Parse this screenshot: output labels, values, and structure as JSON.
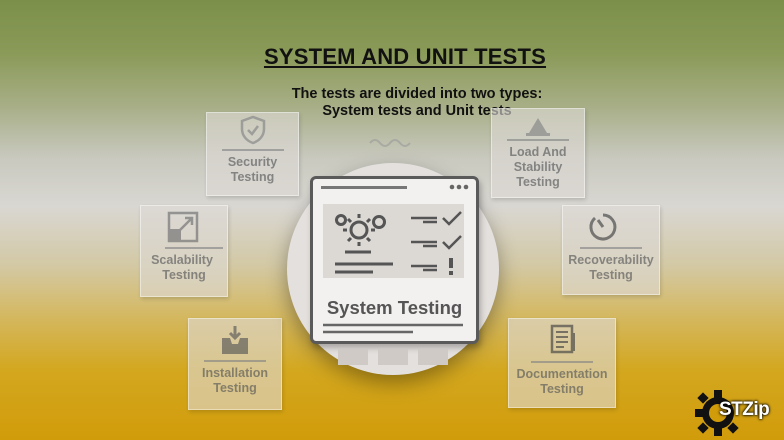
{
  "title": "SYSTEM AND UNIT TESTS",
  "subtitle": {
    "line1": "The tests are divided into two types:",
    "line2": "System tests and Unit tests"
  },
  "center": {
    "label": "System Testing"
  },
  "cards": {
    "security": {
      "line1": "Security",
      "line2": "Testing",
      "icon": "shield-check-icon"
    },
    "load": {
      "line1": "Load And",
      "line2": "Stability",
      "line3": "Testing",
      "icon": "scale-icon"
    },
    "scalability": {
      "line1": "Scalability",
      "line2": "Testing",
      "icon": "resize-arrow-icon"
    },
    "recoverability": {
      "line1": "Recoverability",
      "line2": "Testing",
      "icon": "gauge-icon"
    },
    "installation": {
      "line1": "Installation",
      "line2": "Testing",
      "icon": "download-tray-icon"
    },
    "documentation": {
      "line1": "Documentation",
      "line2": "Testing",
      "icon": "document-icon"
    }
  },
  "logo": {
    "text": "STZip"
  },
  "colors": {
    "top": "#7b8f4a",
    "middle": "#d9d7d2",
    "bottom": "#d19c0a",
    "text": "#111111"
  }
}
